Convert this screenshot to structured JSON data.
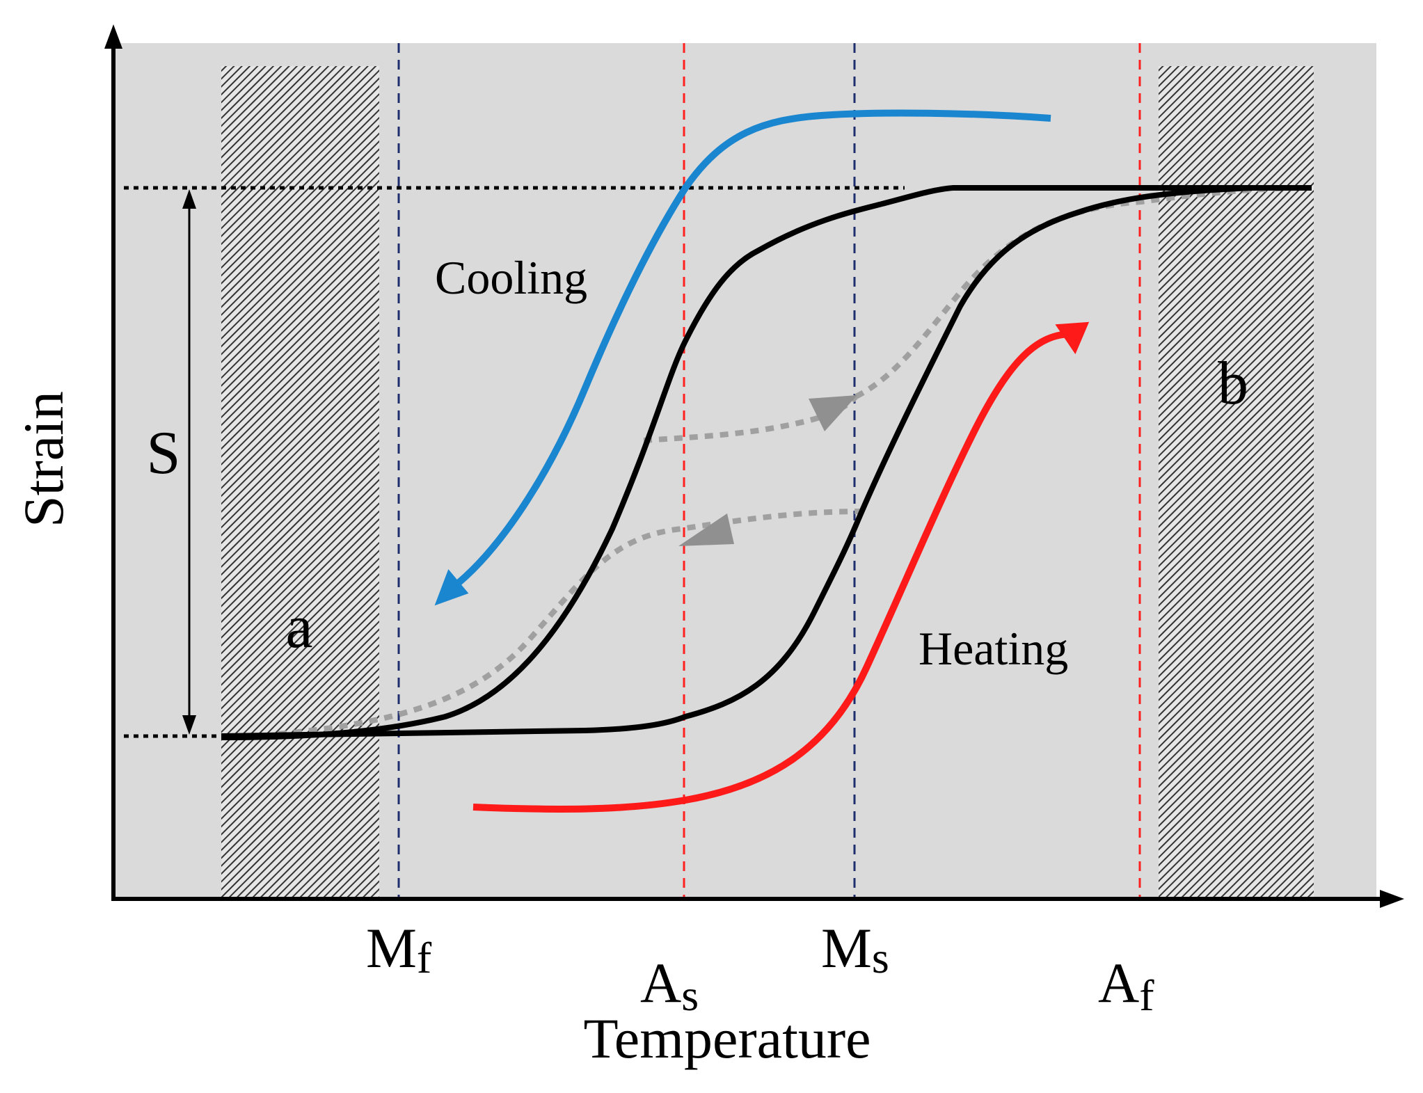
{
  "axes": {
    "x_label": "Temperature",
    "y_label": "Strain"
  },
  "temperature_markers": [
    {
      "main": "M",
      "sub": "f",
      "color": "#1f2d6e"
    },
    {
      "main": "A",
      "sub": "s",
      "color": "#ff2020"
    },
    {
      "main": "M",
      "sub": "s",
      "color": "#1f2d6e"
    },
    {
      "main": "A",
      "sub": "f",
      "color": "#ff2020"
    }
  ],
  "regions": {
    "left": "a",
    "right": "b"
  },
  "annotations": {
    "cooling": "Cooling",
    "heating": "Heating",
    "strain_span": "S"
  },
  "colors": {
    "background": "#dadada",
    "cooling_arrow": "#1a86d0",
    "heating_arrow": "#ff1a1a",
    "hysteresis": "#000000",
    "minor_loop": "#9a9a9a"
  }
}
